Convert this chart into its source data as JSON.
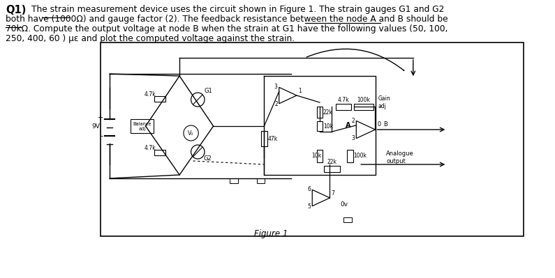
{
  "title_text": "Q1)",
  "q1": "The strain measurement device uses the circuit shown in Figure 1. The strain gauges G1 and G2",
  "q2": "both have (1000Ω) and gauge factor (2). The feedback resistance between the node A and B should be",
  "q3": "70kΩ. Compute the output voltage at node B when the strain at G1 have the following values (50, 100,",
  "q4": "250, 400, 60 ) με and plot the computed voltage against the strain.",
  "figure_label": "Figure 1",
  "bg_color": "#ffffff",
  "text_color": "#000000"
}
